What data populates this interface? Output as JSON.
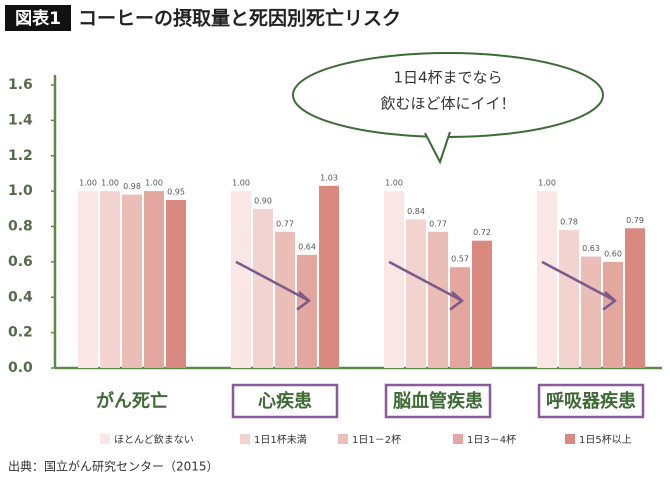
{
  "chart_data": {
    "type": "bar",
    "badge": "図表1",
    "title": "コーヒーの摂取量と死因別死亡リスク",
    "annotation": [
      "1日4杯までなら",
      "飲むほど体にイイ！"
    ],
    "source": "出典：国立がん研究センター（2015）",
    "categories": [
      "がん死亡",
      "心疾患",
      "脳血管疾患",
      "呼吸器疾患"
    ],
    "ylim": [
      0,
      1.6
    ],
    "yticks": [
      {
        "value": 0,
        "label": "0.0"
      },
      {
        "value": 0.2,
        "label": "0.2"
      },
      {
        "value": 0.4,
        "label": "0.4"
      },
      {
        "value": 0.6,
        "label": "0.6"
      },
      {
        "value": 0.8,
        "label": "0.8"
      },
      {
        "value": 1,
        "label": "1.0"
      },
      {
        "value": 1.2,
        "label": "1.2"
      },
      {
        "value": 1.4,
        "label": "1.4"
      },
      {
        "value": 1.6,
        "label": "1.6"
      }
    ],
    "series": [
      {
        "name": "ほとんど飲まない",
        "color": "#fae6e4",
        "values": [
          1,
          1,
          1,
          1
        ],
        "value_labels": [
          "1.00",
          "1.00",
          "1.00",
          "1.00"
        ]
      },
      {
        "name": "1日1杯未満",
        "color": "#f3d3cf",
        "values": [
          1,
          0.9,
          0.84,
          0.78
        ],
        "value_labels": [
          "1.00",
          "0.90",
          "0.84",
          "0.78"
        ]
      },
      {
        "name": "1日1－2杯",
        "color": "#ebbdb7",
        "values": [
          0.98,
          0.77,
          0.77,
          0.63
        ],
        "value_labels": [
          "0.98",
          "0.77",
          "0.77",
          "0.63"
        ]
      },
      {
        "name": "1日3－4杯",
        "color": "#e3a79f",
        "values": [
          1,
          0.64,
          0.57,
          0.6
        ],
        "value_labels": [
          "1.00",
          "0.64",
          "0.57",
          "0.60"
        ]
      },
      {
        "name": "1日5杯以上",
        "color": "#d98980",
        "values": [
          0.95,
          1.03,
          0.72,
          0.79
        ],
        "value_labels": [
          "0.95",
          "1.03",
          "0.72",
          "0.79"
        ]
      }
    ]
  }
}
